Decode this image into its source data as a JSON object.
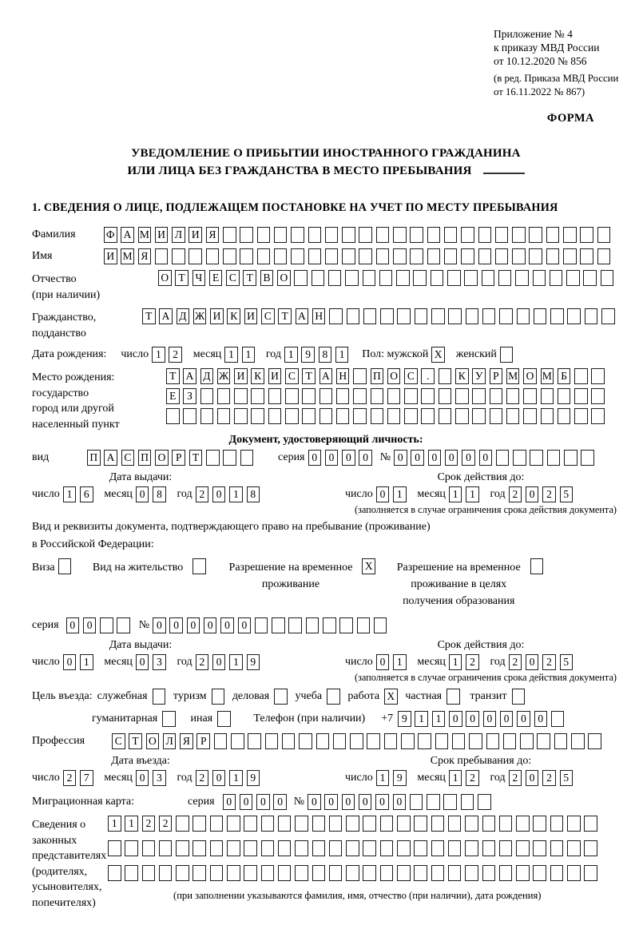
{
  "header": {
    "lines": [
      "Приложение № 4",
      "к приказу МВД России",
      "от 10.12.2020 № 856"
    ],
    "sub_lines": [
      "(в ред. Приказа МВД России",
      "от 16.11.2022 № 867)"
    ],
    "form_label": "ФОРМА"
  },
  "title": {
    "line1": "УВЕДОМЛЕНИЕ О ПРИБЫТИИ ИНОСТРАННОГО ГРАЖДАНИНА",
    "line2": "ИЛИ ЛИЦА БЕЗ ГРАЖДАНСТВА В МЕСТО ПРЕБЫВАНИЯ"
  },
  "section1_heading": "1. СВЕДЕНИЯ О ЛИЦЕ, ПОДЛЕЖАЩЕМ ПОСТАНОВКЕ НА УЧЕТ ПО МЕСТУ ПРЕБЫВАНИЯ",
  "labels": {
    "day": "число",
    "month": "месяц",
    "year": "год",
    "series": "серия",
    "number_sign": "№",
    "issue_date": "Дата выдачи:",
    "valid_until": "Срок действия до:",
    "valid_note": "(заполняется в случае ограничения срока действия документа)",
    "entry_date": "Дата въезда:",
    "stay_until": "Срок пребывания до:"
  },
  "person": {
    "surname": {
      "label": "Фамилия",
      "value": "ФАМИЛИЯ",
      "length": 30
    },
    "given_name": {
      "label": "Имя",
      "value": "ИМЯ",
      "length": 30
    },
    "patronymic": {
      "label": "Отчество",
      "label_note": "(при наличии)",
      "value": "ОТЧЕСТВО",
      "length": 27
    },
    "citizenship": {
      "label": "Гражданство,",
      "label2": "подданство",
      "value": "ТАДЖИКИСТАН",
      "length": 28
    },
    "birth_date": {
      "label": "Дата рождения:",
      "day": {
        "value": "12",
        "length": 2
      },
      "month": {
        "value": "11",
        "length": 2
      },
      "year": {
        "value": "1981",
        "length": 4
      }
    },
    "sex": {
      "label": "Пол: мужской",
      "male": {
        "value": "X",
        "length": 1
      },
      "female_label": "женский",
      "female": {
        "value": "",
        "length": 1
      }
    },
    "birth_place": {
      "labels": [
        "Место рождения:",
        "государство",
        "город или другой",
        "населенный пункт"
      ],
      "row1": {
        "value": "ТАДЖИКИСТАН ПОС. КУРМОМБ",
        "length": 26
      },
      "row2": {
        "value": "ЕЗ",
        "length": 26
      },
      "row3": {
        "value": "",
        "length": 26
      }
    }
  },
  "id_doc": {
    "heading": "Документ, удостоверяющий личность:",
    "kind_label": "вид",
    "kind": {
      "value": "ПАСПОРТ",
      "length": 10
    },
    "series": {
      "value": "0000",
      "length": 4
    },
    "number": {
      "value": "000000",
      "length": 12
    },
    "issue": {
      "day": {
        "value": "16",
        "length": 2
      },
      "month": {
        "value": "08",
        "length": 2
      },
      "year": {
        "value": "2018",
        "length": 4
      }
    },
    "valid": {
      "day": {
        "value": "01",
        "length": 2
      },
      "month": {
        "value": "11",
        "length": 2
      },
      "year": {
        "value": "2025",
        "length": 4
      }
    }
  },
  "stay_doc": {
    "line1": "Вид и реквизиты документа, подтверждающего право на пребывание (проживание)",
    "line2": "в Российской Федерации:",
    "visa": {
      "label": "Виза",
      "box": {
        "value": "",
        "length": 1
      }
    },
    "residence_permit": {
      "label": "Вид на жительство",
      "box": {
        "value": "",
        "length": 1
      }
    },
    "temp_permit": {
      "line1": "Разрешение на временное",
      "line2": "проживание",
      "box": {
        "value": "X",
        "length": 1
      }
    },
    "temp_permit_edu": {
      "line1": "Разрешение на временное",
      "line2": "проживание в целях",
      "line3": "получения образования",
      "box": {
        "value": "",
        "length": 1
      }
    },
    "series": {
      "value": "00",
      "length": 4
    },
    "number": {
      "value": "000000",
      "length": 14
    },
    "issue": {
      "day": {
        "value": "01",
        "length": 2
      },
      "month": {
        "value": "03",
        "length": 2
      },
      "year": {
        "value": "2019",
        "length": 4
      }
    },
    "valid": {
      "day": {
        "value": "01",
        "length": 2
      },
      "month": {
        "value": "12",
        "length": 2
      },
      "year": {
        "value": "2025",
        "length": 4
      }
    }
  },
  "visit": {
    "purpose_label": "Цель въезда:",
    "options": [
      {
        "label": "служебная",
        "box": {
          "value": "",
          "length": 1
        }
      },
      {
        "label": "туризм",
        "box": {
          "value": "",
          "length": 1
        }
      },
      {
        "label": "деловая",
        "box": {
          "value": "",
          "length": 1
        }
      },
      {
        "label": "учеба",
        "box": {
          "value": "",
          "length": 1
        }
      },
      {
        "label": "работа",
        "box": {
          "value": "X",
          "length": 1
        }
      },
      {
        "label": "частная",
        "box": {
          "value": "",
          "length": 1
        }
      },
      {
        "label": "транзит",
        "box": {
          "value": "",
          "length": 1
        }
      }
    ],
    "options2": [
      {
        "label": "гуманитарная",
        "box": {
          "value": "",
          "length": 1
        }
      },
      {
        "label": "иная",
        "box": {
          "value": "",
          "length": 1
        }
      }
    ],
    "phone_label": "Телефон (при наличии)",
    "phone_prefix": "+7",
    "phone": {
      "value": "911000000",
      "length": 10
    },
    "profession": {
      "label": "Профессия",
      "value": "СТОЛЯР",
      "length": 29
    },
    "entry": {
      "day": {
        "value": "27",
        "length": 2
      },
      "month": {
        "value": "03",
        "length": 2
      },
      "year": {
        "value": "2019",
        "length": 4
      }
    },
    "stay": {
      "day": {
        "value": "19",
        "length": 2
      },
      "month": {
        "value": "12",
        "length": 2
      },
      "year": {
        "value": "2025",
        "length": 4
      }
    }
  },
  "migration_card": {
    "label": "Миграционная карта:",
    "series": {
      "value": "0000",
      "length": 4
    },
    "number": {
      "value": "000000",
      "length": 11
    }
  },
  "representatives": {
    "labels": [
      "Сведения о",
      "законных",
      "представителях",
      "(родителях,",
      "усыновителях,",
      "попечителях)"
    ],
    "row1": {
      "value": "1122",
      "length": 29
    },
    "row2": {
      "value": "",
      "length": 29
    },
    "row3": {
      "value": "",
      "length": 29
    },
    "note": "(при заполнении указываются фамилия, имя, отчество (при наличии), дата рождения)"
  }
}
